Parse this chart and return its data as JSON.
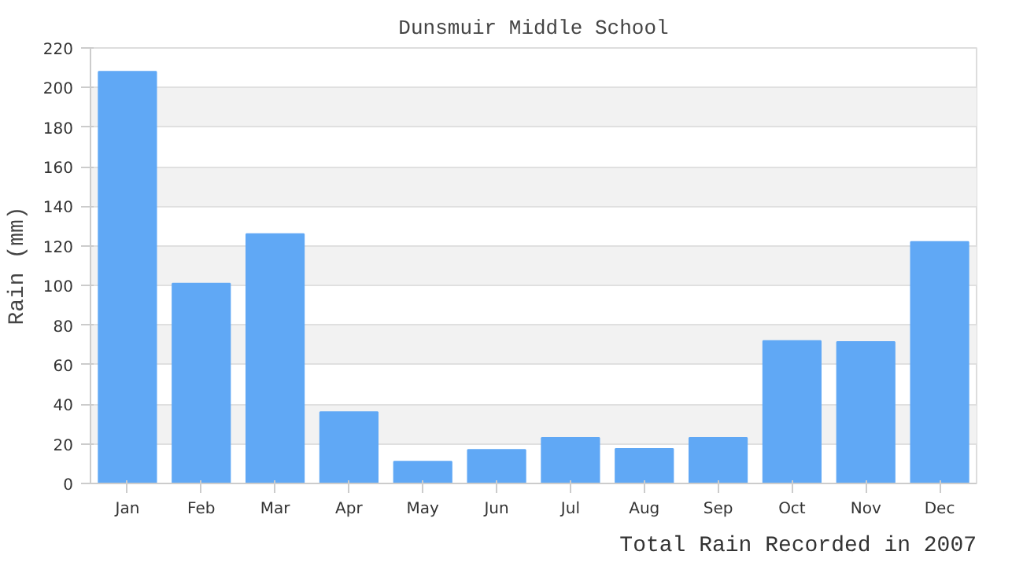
{
  "chart_data": {
    "type": "bar",
    "title": "Dunsmuir Middle School",
    "xlabel": "Total Rain Recorded in 2007",
    "ylabel": "Rain (mm)",
    "categories": [
      "Jan",
      "Feb",
      "Mar",
      "Apr",
      "May",
      "Jun",
      "Jul",
      "Aug",
      "Sep",
      "Oct",
      "Nov",
      "Dec"
    ],
    "values": [
      208,
      101,
      126,
      36,
      11,
      17,
      23,
      17.5,
      23,
      72,
      71.5,
      122
    ],
    "color": "#60a8f5",
    "ylim": [
      0,
      220
    ],
    "yticks": [
      0,
      20,
      40,
      60,
      80,
      100,
      120,
      140,
      160,
      180,
      200,
      220
    ],
    "grid": "y"
  }
}
